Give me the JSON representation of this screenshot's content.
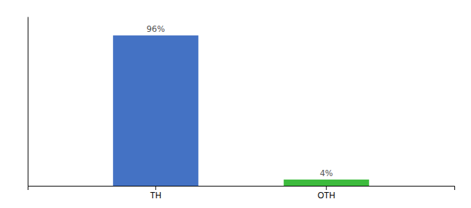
{
  "chart_data": {
    "type": "bar",
    "categories": [
      "TH",
      "OTH"
    ],
    "values": [
      96,
      4
    ],
    "value_labels": [
      "96%",
      "4%"
    ],
    "colors": [
      "#4472c4",
      "#3dbb3d"
    ],
    "ylim": [
      0,
      108
    ],
    "data_labels": true,
    "tick_labels": "x",
    "grid": false
  }
}
